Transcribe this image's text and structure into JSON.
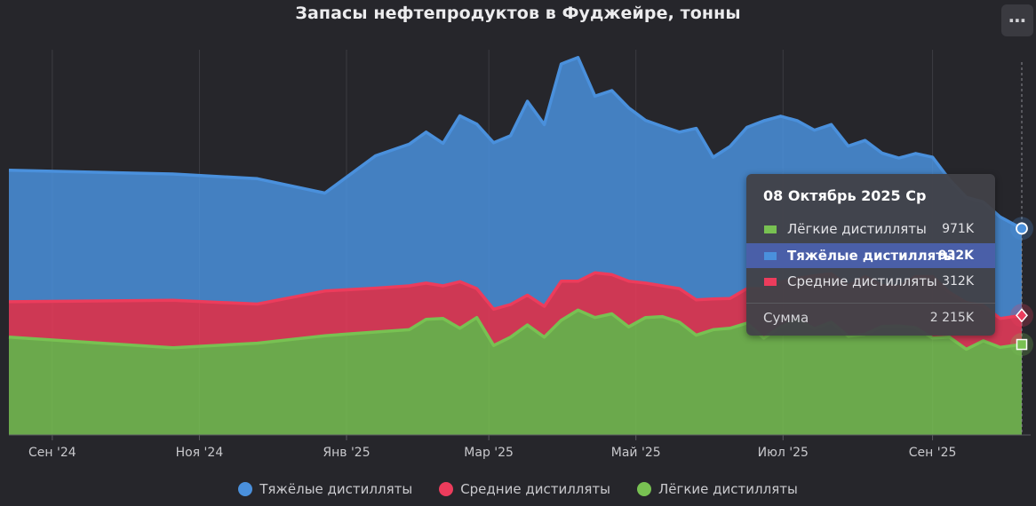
{
  "chart_data": {
    "type": "area",
    "stacked": true,
    "title": "Запасы нефтепродуктов в Фуджейре, тонны",
    "x_tick_labels": [
      "Сен '24",
      "Ноя '24",
      "Янв '25",
      "Мар '25",
      "Май '25",
      "Июл '25",
      "Сен '25"
    ],
    "x_tick_dates": [
      "2024-09-01",
      "2024-11-01",
      "2025-01-01",
      "2025-03-01",
      "2025-05-01",
      "2025-07-01",
      "2025-09-01"
    ],
    "x": [
      "2024-08-14",
      "2024-10-21",
      "2024-11-25",
      "2024-12-23",
      "2025-01-13",
      "2025-01-27",
      "2025-02-03",
      "2025-02-10",
      "2025-02-17",
      "2025-02-24",
      "2025-03-03",
      "2025-03-10",
      "2025-03-17",
      "2025-03-24",
      "2025-03-31",
      "2025-04-07",
      "2025-04-14",
      "2025-04-21",
      "2025-04-28",
      "2025-05-05",
      "2025-05-12",
      "2025-05-19",
      "2025-05-26",
      "2025-06-02",
      "2025-06-09",
      "2025-06-16",
      "2025-06-23",
      "2025-06-30",
      "2025-07-07",
      "2025-07-14",
      "2025-07-21",
      "2025-07-28",
      "2025-08-04",
      "2025-08-11",
      "2025-08-18",
      "2025-08-25",
      "2025-09-01",
      "2025-09-08",
      "2025-09-15",
      "2025-09-22",
      "2025-09-29",
      "2025-10-08"
    ],
    "series": [
      {
        "name": "Лёгкие дистилляты",
        "color": "#78c152",
        "values": [
          1050,
          935,
          985,
          1065,
          1105,
          1130,
          1240,
          1250,
          1145,
          1260,
          960,
          1050,
          1180,
          1050,
          1230,
          1340,
          1260,
          1300,
          1160,
          1260,
          1270,
          1210,
          1070,
          1130,
          1145,
          1200,
          1040,
          1160,
          1240,
          1140,
          1210,
          1060,
          1080,
          1165,
          1170,
          1150,
          1040,
          1050,
          920,
          1010,
          940,
          971
        ]
      },
      {
        "name": "Средние дистилляты",
        "color": "#ec3c5c",
        "values": [
          380,
          510,
          420,
          480,
          470,
          470,
          390,
          350,
          500,
          310,
          390,
          350,
          320,
          330,
          420,
          310,
          480,
          420,
          490,
          370,
          330,
          360,
          380,
          330,
          320,
          370,
          530,
          480,
          440,
          570,
          520,
          540,
          620,
          440,
          420,
          550,
          660,
          480,
          500,
          380,
          310,
          312
        ]
      },
      {
        "name": "Тяжёлые дистилляты",
        "color": "#4a90dc",
        "values": [
          1410,
          1355,
          1345,
          1050,
          1420,
          1520,
          1620,
          1530,
          1780,
          1765,
          1785,
          1810,
          2080,
          1950,
          2330,
          2400,
          1895,
          1975,
          1860,
          1745,
          1710,
          1680,
          1840,
          1520,
          1630,
          1730,
          1800,
          1780,
          1690,
          1560,
          1600,
          1500,
          1460,
          1420,
          1380,
          1320,
          1280,
          1210,
          1130,
          1110,
          1090,
          932
        ]
      }
    ],
    "ylim": [
      0,
      4000
    ],
    "grid": "vertical",
    "legend_position": "bottom",
    "tooltip": {
      "date": "08 Октябрь 2025 Ср",
      "rows": [
        {
          "label": "Лёгкие дистилляты",
          "value": "971K",
          "color": "#78c152",
          "highlight": false
        },
        {
          "label": "Тяжёлые дистилляты",
          "value": "932K",
          "color": "#4a90dc",
          "highlight": true
        },
        {
          "label": "Средние дистилляты",
          "value": "312K",
          "color": "#ec3c5c",
          "highlight": false
        }
      ],
      "sum_label": "Сумма",
      "sum_value": "2 215K"
    }
  },
  "legend": [
    {
      "label": "Тяжёлые дистилляты",
      "color": "#4a90dc"
    },
    {
      "label": "Средние дистилляты",
      "color": "#ec3c5c"
    },
    {
      "label": "Лёгкие дистилляты",
      "color": "#78c152"
    }
  ],
  "menu_icon": "more-horizontal-icon",
  "menu_glyph": "⋯"
}
